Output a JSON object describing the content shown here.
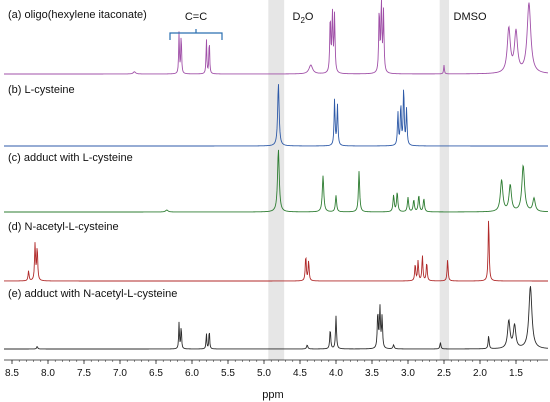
{
  "chart_data": {
    "type": "line",
    "xlabel": "ppm",
    "xlim": [
      8.6,
      1.2
    ],
    "x_reversed": true,
    "grid": false,
    "x_ticks": [
      "8.5",
      "8.0",
      "7.5",
      "7.0",
      "6.5",
      "6.0",
      "5.5",
      "5.0",
      "4.5",
      "4.0",
      "3.5",
      "3.0",
      "2.5",
      "2.0",
      "1.5"
    ],
    "annotations": {
      "cc": "C=C",
      "d2o_main": "D",
      "d2o_sub": "2",
      "d2o_tail": "O",
      "dmso": "DMSO"
    },
    "shaded_regions": [
      {
        "name": "D2O",
        "from": 4.94,
        "to": 4.72
      },
      {
        "name": "DMSO",
        "from": 2.56,
        "to": 2.43
      }
    ],
    "series": [
      {
        "name": "(a) oligo(hexylene itaconate)",
        "color": "#a050a8",
        "peaks": [
          {
            "ppm": 6.8,
            "h": 0.03,
            "w": 0.02
          },
          {
            "ppm": 6.18,
            "h": 0.56,
            "w": 0.006
          },
          {
            "ppm": 6.15,
            "h": 0.56,
            "w": 0.006
          },
          {
            "ppm": 5.8,
            "h": 0.48,
            "w": 0.006
          },
          {
            "ppm": 5.76,
            "h": 0.48,
            "w": 0.006
          },
          {
            "ppm": 4.35,
            "h": 0.12,
            "w": 0.03
          },
          {
            "ppm": 4.08,
            "h": 0.75,
            "w": 0.008
          },
          {
            "ppm": 4.05,
            "h": 0.8,
            "w": 0.008
          },
          {
            "ppm": 4.02,
            "h": 0.78,
            "w": 0.008
          },
          {
            "ppm": 3.4,
            "h": 0.85,
            "w": 0.008
          },
          {
            "ppm": 3.37,
            "h": 0.95,
            "w": 0.008
          },
          {
            "ppm": 3.34,
            "h": 0.82,
            "w": 0.008
          },
          {
            "ppm": 2.5,
            "h": 0.12,
            "w": 0.006
          },
          {
            "ppm": 1.6,
            "h": 0.6,
            "w": 0.025
          },
          {
            "ppm": 1.5,
            "h": 0.55,
            "w": 0.025
          },
          {
            "ppm": 1.32,
            "h": 0.95,
            "w": 0.03
          }
        ]
      },
      {
        "name": "(b) L-cysteine",
        "color": "#2e5aa8",
        "peaks": [
          {
            "ppm": 4.8,
            "h": 0.95,
            "w": 0.012
          },
          {
            "ppm": 4.02,
            "h": 0.7,
            "w": 0.008
          },
          {
            "ppm": 3.98,
            "h": 0.62,
            "w": 0.008
          },
          {
            "ppm": 3.14,
            "h": 0.5,
            "w": 0.008
          },
          {
            "ppm": 3.1,
            "h": 0.62,
            "w": 0.008
          },
          {
            "ppm": 3.06,
            "h": 0.88,
            "w": 0.008
          },
          {
            "ppm": 3.02,
            "h": 0.55,
            "w": 0.008
          }
        ]
      },
      {
        "name": "(c) adduct with L-cysteine",
        "color": "#2e7d32",
        "peaks": [
          {
            "ppm": 6.35,
            "h": 0.03,
            "w": 0.02
          },
          {
            "ppm": 4.8,
            "h": 0.95,
            "w": 0.014
          },
          {
            "ppm": 4.18,
            "h": 0.55,
            "w": 0.012
          },
          {
            "ppm": 4.0,
            "h": 0.25,
            "w": 0.01
          },
          {
            "ppm": 3.68,
            "h": 0.62,
            "w": 0.01
          },
          {
            "ppm": 3.2,
            "h": 0.25,
            "w": 0.01
          },
          {
            "ppm": 3.15,
            "h": 0.3,
            "w": 0.01
          },
          {
            "ppm": 3.0,
            "h": 0.22,
            "w": 0.01
          },
          {
            "ppm": 2.92,
            "h": 0.18,
            "w": 0.01
          },
          {
            "ppm": 2.85,
            "h": 0.25,
            "w": 0.01
          },
          {
            "ppm": 2.78,
            "h": 0.2,
            "w": 0.01
          },
          {
            "ppm": 1.7,
            "h": 0.48,
            "w": 0.02
          },
          {
            "ppm": 1.58,
            "h": 0.4,
            "w": 0.02
          },
          {
            "ppm": 1.4,
            "h": 0.7,
            "w": 0.022
          },
          {
            "ppm": 1.25,
            "h": 0.2,
            "w": 0.02
          }
        ]
      },
      {
        "name": "(d) N-acetyl-L-cysteine",
        "color": "#b02a2a",
        "peaks": [
          {
            "ppm": 8.27,
            "h": 0.15,
            "w": 0.008
          },
          {
            "ppm": 8.18,
            "h": 0.55,
            "w": 0.008
          },
          {
            "ppm": 8.15,
            "h": 0.5,
            "w": 0.008
          },
          {
            "ppm": 4.42,
            "h": 0.38,
            "w": 0.008
          },
          {
            "ppm": 4.38,
            "h": 0.3,
            "w": 0.008
          },
          {
            "ppm": 2.9,
            "h": 0.25,
            "w": 0.008
          },
          {
            "ppm": 2.86,
            "h": 0.3,
            "w": 0.008
          },
          {
            "ppm": 2.8,
            "h": 0.38,
            "w": 0.008
          },
          {
            "ppm": 2.74,
            "h": 0.28,
            "w": 0.008
          },
          {
            "ppm": 2.45,
            "h": 0.32,
            "w": 0.008
          },
          {
            "ppm": 1.88,
            "h": 0.95,
            "w": 0.008
          }
        ]
      },
      {
        "name": "(e) adduct with N-acetyl-L-cysteine",
        "color": "#2b2b2b",
        "peaks": [
          {
            "ppm": 8.15,
            "h": 0.04,
            "w": 0.008
          },
          {
            "ppm": 6.18,
            "h": 0.4,
            "w": 0.006
          },
          {
            "ppm": 6.15,
            "h": 0.36,
            "w": 0.006
          },
          {
            "ppm": 5.8,
            "h": 0.24,
            "w": 0.006
          },
          {
            "ppm": 5.76,
            "h": 0.3,
            "w": 0.006
          },
          {
            "ppm": 4.4,
            "h": 0.06,
            "w": 0.01
          },
          {
            "ppm": 4.08,
            "h": 0.3,
            "w": 0.008
          },
          {
            "ppm": 4.0,
            "h": 0.5,
            "w": 0.008
          },
          {
            "ppm": 3.42,
            "h": 0.55,
            "w": 0.008
          },
          {
            "ppm": 3.39,
            "h": 0.62,
            "w": 0.008
          },
          {
            "ppm": 3.36,
            "h": 0.48,
            "w": 0.008
          },
          {
            "ppm": 3.2,
            "h": 0.06,
            "w": 0.01
          },
          {
            "ppm": 2.55,
            "h": 0.1,
            "w": 0.008
          },
          {
            "ppm": 1.88,
            "h": 0.2,
            "w": 0.008
          },
          {
            "ppm": 1.6,
            "h": 0.42,
            "w": 0.02
          },
          {
            "ppm": 1.52,
            "h": 0.35,
            "w": 0.02
          },
          {
            "ppm": 1.3,
            "h": 0.95,
            "w": 0.025
          }
        ]
      }
    ]
  }
}
